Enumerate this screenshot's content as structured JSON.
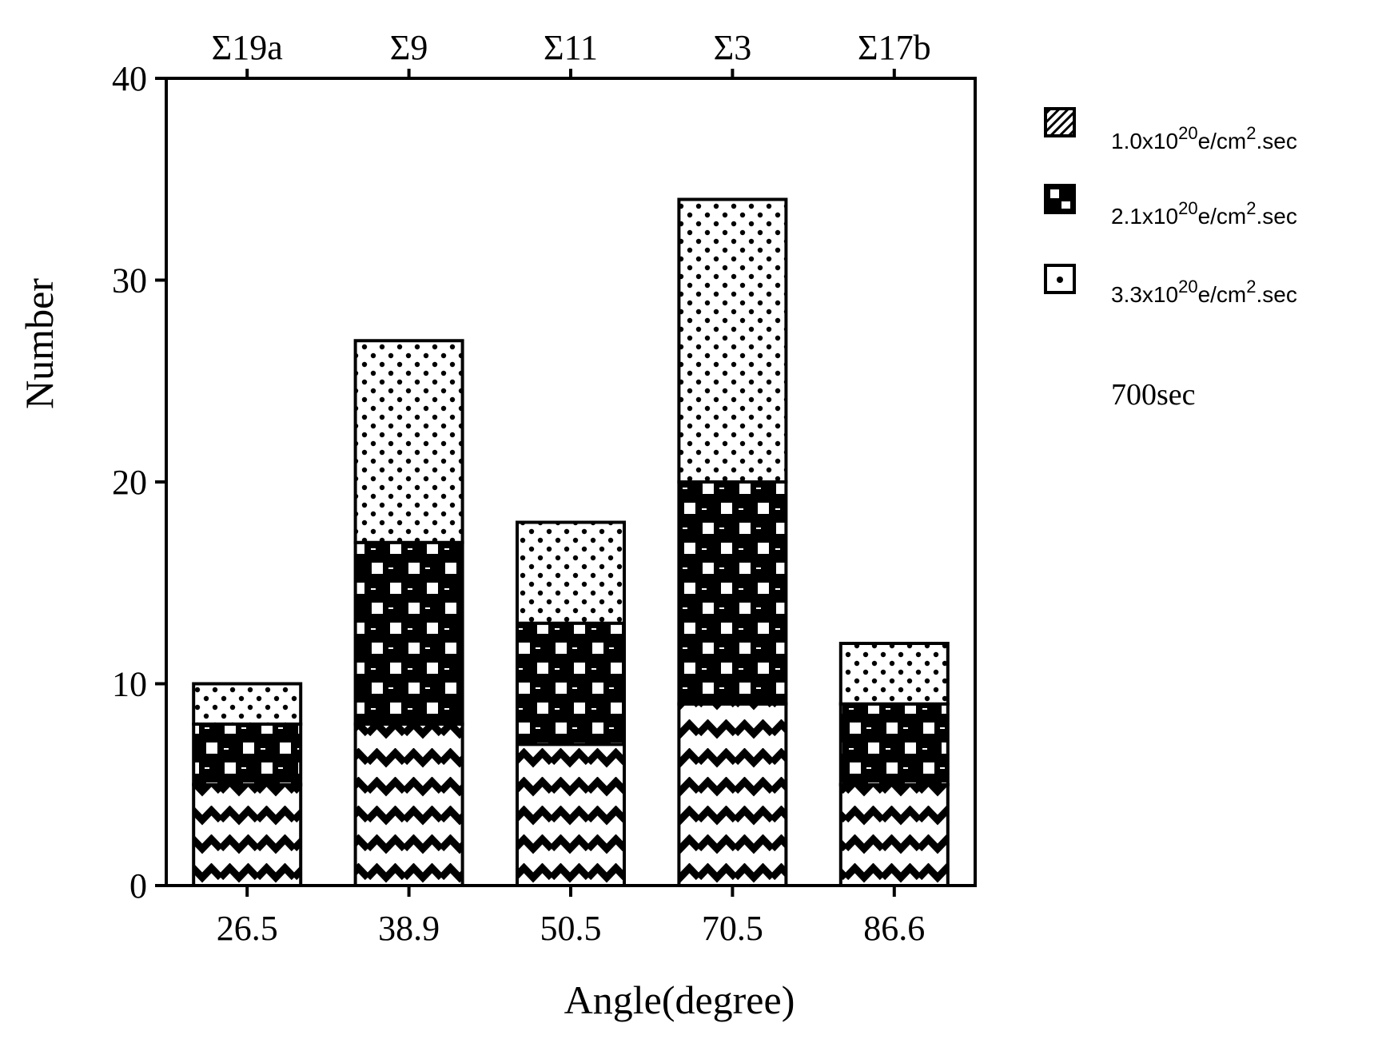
{
  "chart_data": {
    "type": "bar",
    "stacked": true,
    "categories": [
      "26.5",
      "38.9",
      "50.5",
      "70.5",
      "86.6"
    ],
    "top_categories": [
      "Σ19a",
      "Σ9",
      "Σ11",
      "Σ3",
      "Σ17b"
    ],
    "series": [
      {
        "name": "1.0x10^20e/cm^2.sec",
        "pattern": "wave",
        "values": [
          5,
          8,
          7,
          9,
          5
        ]
      },
      {
        "name": "2.1x10^20e/cm^2.sec",
        "pattern": "checker",
        "values": [
          3,
          9,
          6,
          11,
          4
        ]
      },
      {
        "name": "3.3x10^20e/cm^2.sec",
        "pattern": "dots",
        "values": [
          2,
          10,
          5,
          14,
          3
        ]
      }
    ],
    "xlabel": "Angle(degree)",
    "ylabel": "Number",
    "ylim": [
      0,
      40
    ],
    "yticks": [
      "0",
      "10",
      "20",
      "30",
      "40"
    ],
    "legend": {
      "placement": "right",
      "items": [
        {
          "prefix": "1.0x10",
          "exp": "20",
          "mid": "e/cm",
          "exp2": "2",
          "suffix": ".sec"
        },
        {
          "prefix": "2.1x10",
          "exp": "20",
          "mid": "e/cm",
          "exp2": "2",
          "suffix": ".sec"
        },
        {
          "prefix": "3.3x10",
          "exp": "20",
          "mid": "e/cm",
          "exp2": "2",
          "suffix": ".sec"
        }
      ]
    },
    "note": "700sec",
    "grid": false
  }
}
